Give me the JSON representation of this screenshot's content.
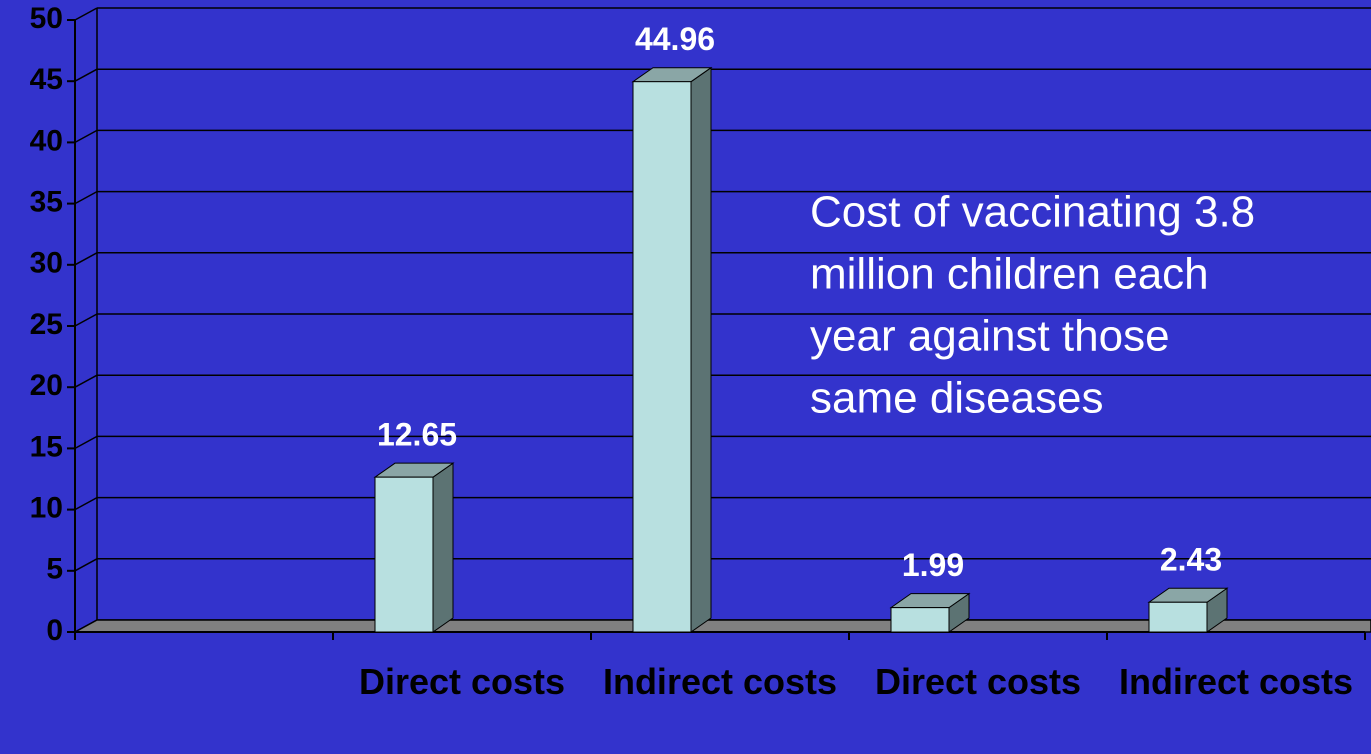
{
  "chart_data": {
    "type": "bar3d",
    "categories": [
      null,
      "Direct costs",
      "Indirect costs",
      "Direct costs",
      "Indirect costs"
    ],
    "values": [
      null,
      12.65,
      44.96,
      1.99,
      2.43
    ],
    "color": "#b8e0e0",
    "annotation": [
      "Cost of vaccinating 3.8",
      "million children each",
      "year against those",
      "same diseases"
    ],
    "ylim": [
      0,
      50
    ],
    "yticks": [
      0,
      5,
      10,
      15,
      20,
      25,
      30,
      35,
      40,
      45,
      50
    ],
    "grid": true
  }
}
